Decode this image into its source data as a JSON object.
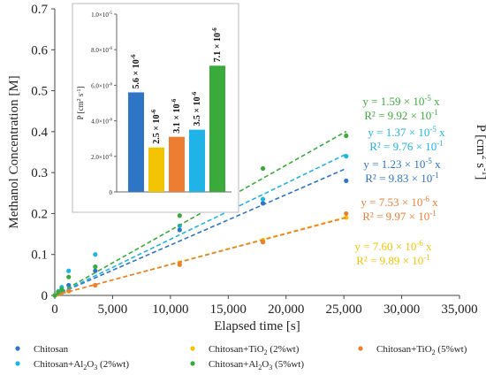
{
  "chart_data": {
    "type": "scatter",
    "xlabel": "Elapsed time [s]",
    "ylabel": "Methanol Concentration [M]",
    "right_label": "P [cm",
    "right_label_sup": "2",
    "right_label_tail": " s",
    "right_label_sup2": "-1",
    "right_label_end": "]",
    "xlim": [
      0,
      35000
    ],
    "ylim": [
      0,
      0.7
    ],
    "x_ticks": [
      0,
      5000,
      10000,
      15000,
      20000,
      25000,
      30000,
      35000
    ],
    "x_tick_labels": [
      "0",
      "5,000",
      "10,000",
      "15,000",
      "20,000",
      "25,000",
      "30,000",
      "35,000"
    ],
    "y_ticks": [
      0,
      0.1,
      0.2,
      0.3,
      0.4,
      0.5,
      0.6,
      0.7
    ],
    "y_tick_labels": [
      "0",
      "0.1",
      "0.2",
      "0.3",
      "0.4",
      "0.5",
      "0.6",
      "0.7"
    ],
    "grid": false,
    "legend_position": "bottom",
    "series": [
      {
        "key": "chitosan",
        "name": "Chitosan",
        "color": "#2e75c8",
        "slope": 1.23e-05,
        "points": [
          [
            0,
            0.0
          ],
          [
            300,
            0.005
          ],
          [
            600,
            0.01
          ],
          [
            1200,
            0.025
          ],
          [
            3500,
            0.06
          ],
          [
            10800,
            0.16
          ],
          [
            18000,
            0.225
          ],
          [
            25200,
            0.28
          ]
        ]
      },
      {
        "key": "chitosan_tio2_2",
        "name": "Chitosan+TiO",
        "name_sub": "2",
        "name_tail": " (2%wt)",
        "color": "#f2c400",
        "slope": 7.6e-06,
        "points": [
          [
            0,
            0.0
          ],
          [
            300,
            0.003
          ],
          [
            600,
            0.006
          ],
          [
            1200,
            0.01
          ],
          [
            3500,
            0.025
          ],
          [
            10800,
            0.08
          ],
          [
            18000,
            0.135
          ],
          [
            25200,
            0.19
          ]
        ]
      },
      {
        "key": "chitosan_tio2_5",
        "name": "Chitosan+TiO",
        "name_sub": "2",
        "name_tail": " (5%wt)",
        "color": "#ed7d31",
        "slope": 7.53e-06,
        "points": [
          [
            0,
            0.0
          ],
          [
            300,
            0.004
          ],
          [
            600,
            0.008
          ],
          [
            1200,
            0.012
          ],
          [
            3500,
            0.025
          ],
          [
            10800,
            0.075
          ],
          [
            18000,
            0.13
          ],
          [
            25200,
            0.2
          ]
        ]
      },
      {
        "key": "chitosan_al2o3_2",
        "name": "Chitosan+Al",
        "name_sub": "2",
        "name_mid": "O",
        "name_sub2": "3",
        "name_tail": " (2%wt)",
        "color": "#1fb3e8",
        "slope": 1.37e-05,
        "points": [
          [
            0,
            0.0
          ],
          [
            300,
            0.01
          ],
          [
            600,
            0.02
          ],
          [
            1200,
            0.06
          ],
          [
            3500,
            0.1
          ],
          [
            10800,
            0.17
          ],
          [
            18000,
            0.235
          ],
          [
            25200,
            0.34
          ]
        ]
      },
      {
        "key": "chitosan_al2o3_5",
        "name": "Chitosan+Al",
        "name_sub": "2",
        "name_mid": "O",
        "name_sub2": "3",
        "name_tail": " (5%wt)",
        "color": "#3aab3a",
        "slope": 1.59e-05,
        "points": [
          [
            0,
            0.0
          ],
          [
            300,
            0.008
          ],
          [
            600,
            0.015
          ],
          [
            1200,
            0.045
          ],
          [
            3500,
            0.07
          ],
          [
            10800,
            0.195
          ],
          [
            18000,
            0.31
          ],
          [
            25200,
            0.39
          ]
        ]
      }
    ],
    "annotations": [
      {
        "series": "chitosan_al2o3_5",
        "color": "#3aab3a",
        "line1": "y = 1.59 × 10",
        "exp1": "-5",
        "tail1": " x",
        "line2": "R² = 9.92 × 10",
        "exp2": "-1"
      },
      {
        "series": "chitosan_al2o3_2",
        "color": "#1fb3e8",
        "line1": "y = 1.37 × 10",
        "exp1": "-5",
        "tail1": " x",
        "line2": "R² = 9.76 × 10",
        "exp2": "-1"
      },
      {
        "series": "chitosan",
        "color": "#2e75c8",
        "line1": "y = 1.23 × 10",
        "exp1": "-5",
        "tail1": " x",
        "line2": "R² = 9.83 × 10",
        "exp2": "-1"
      },
      {
        "series": "chitosan_tio2_5",
        "color": "#ed7d31",
        "line1": "y = 7.53 × 10",
        "exp1": "-6",
        "tail1": " x",
        "line2": "R² = 9.97 × 10",
        "exp2": "-1"
      },
      {
        "series": "chitosan_tio2_2",
        "color": "#f2c400",
        "line1": "y = 7.60 × 10",
        "exp1": "-6",
        "tail1": " x",
        "line2": "R² = 9.89 × 10",
        "exp2": "-1"
      }
    ],
    "inset": {
      "type": "bar",
      "ylabel": "P [cm",
      "ylabel_sup": "2",
      "ylabel_tail": " s",
      "ylabel_sup2": "-1",
      "ylabel_end": "]",
      "ylim": [
        0,
        1e-05
      ],
      "y_tick_labels": [
        "0",
        "2.0×10",
        "4.0×10",
        "6.0×10",
        "8.0×10",
        "1.0×10"
      ],
      "y_tick_exps": [
        "",
        "-6",
        "-6",
        "-6",
        "-6",
        "-5"
      ],
      "bars": [
        {
          "series": "chitosan",
          "value": 5.6e-06,
          "label": "5.6 × 10",
          "exp": "-6",
          "color": "#2e75c8"
        },
        {
          "series": "chitosan_tio2_2",
          "value": 2.5e-06,
          "label": "2.5 × 10",
          "exp": "-6",
          "color": "#f2c400"
        },
        {
          "series": "chitosan_tio2_5",
          "value": 3.1e-06,
          "label": "3.1 × 10",
          "exp": "-6",
          "color": "#ed7d31"
        },
        {
          "series": "chitosan_al2o3_2",
          "value": 3.5e-06,
          "label": "3.5 × 10",
          "exp": "-6",
          "color": "#1fb3e8"
        },
        {
          "series": "chitosan_al2o3_5",
          "value": 7.1e-06,
          "label": "7.1 × 10",
          "exp": "-6",
          "color": "#3aab3a"
        }
      ]
    }
  }
}
